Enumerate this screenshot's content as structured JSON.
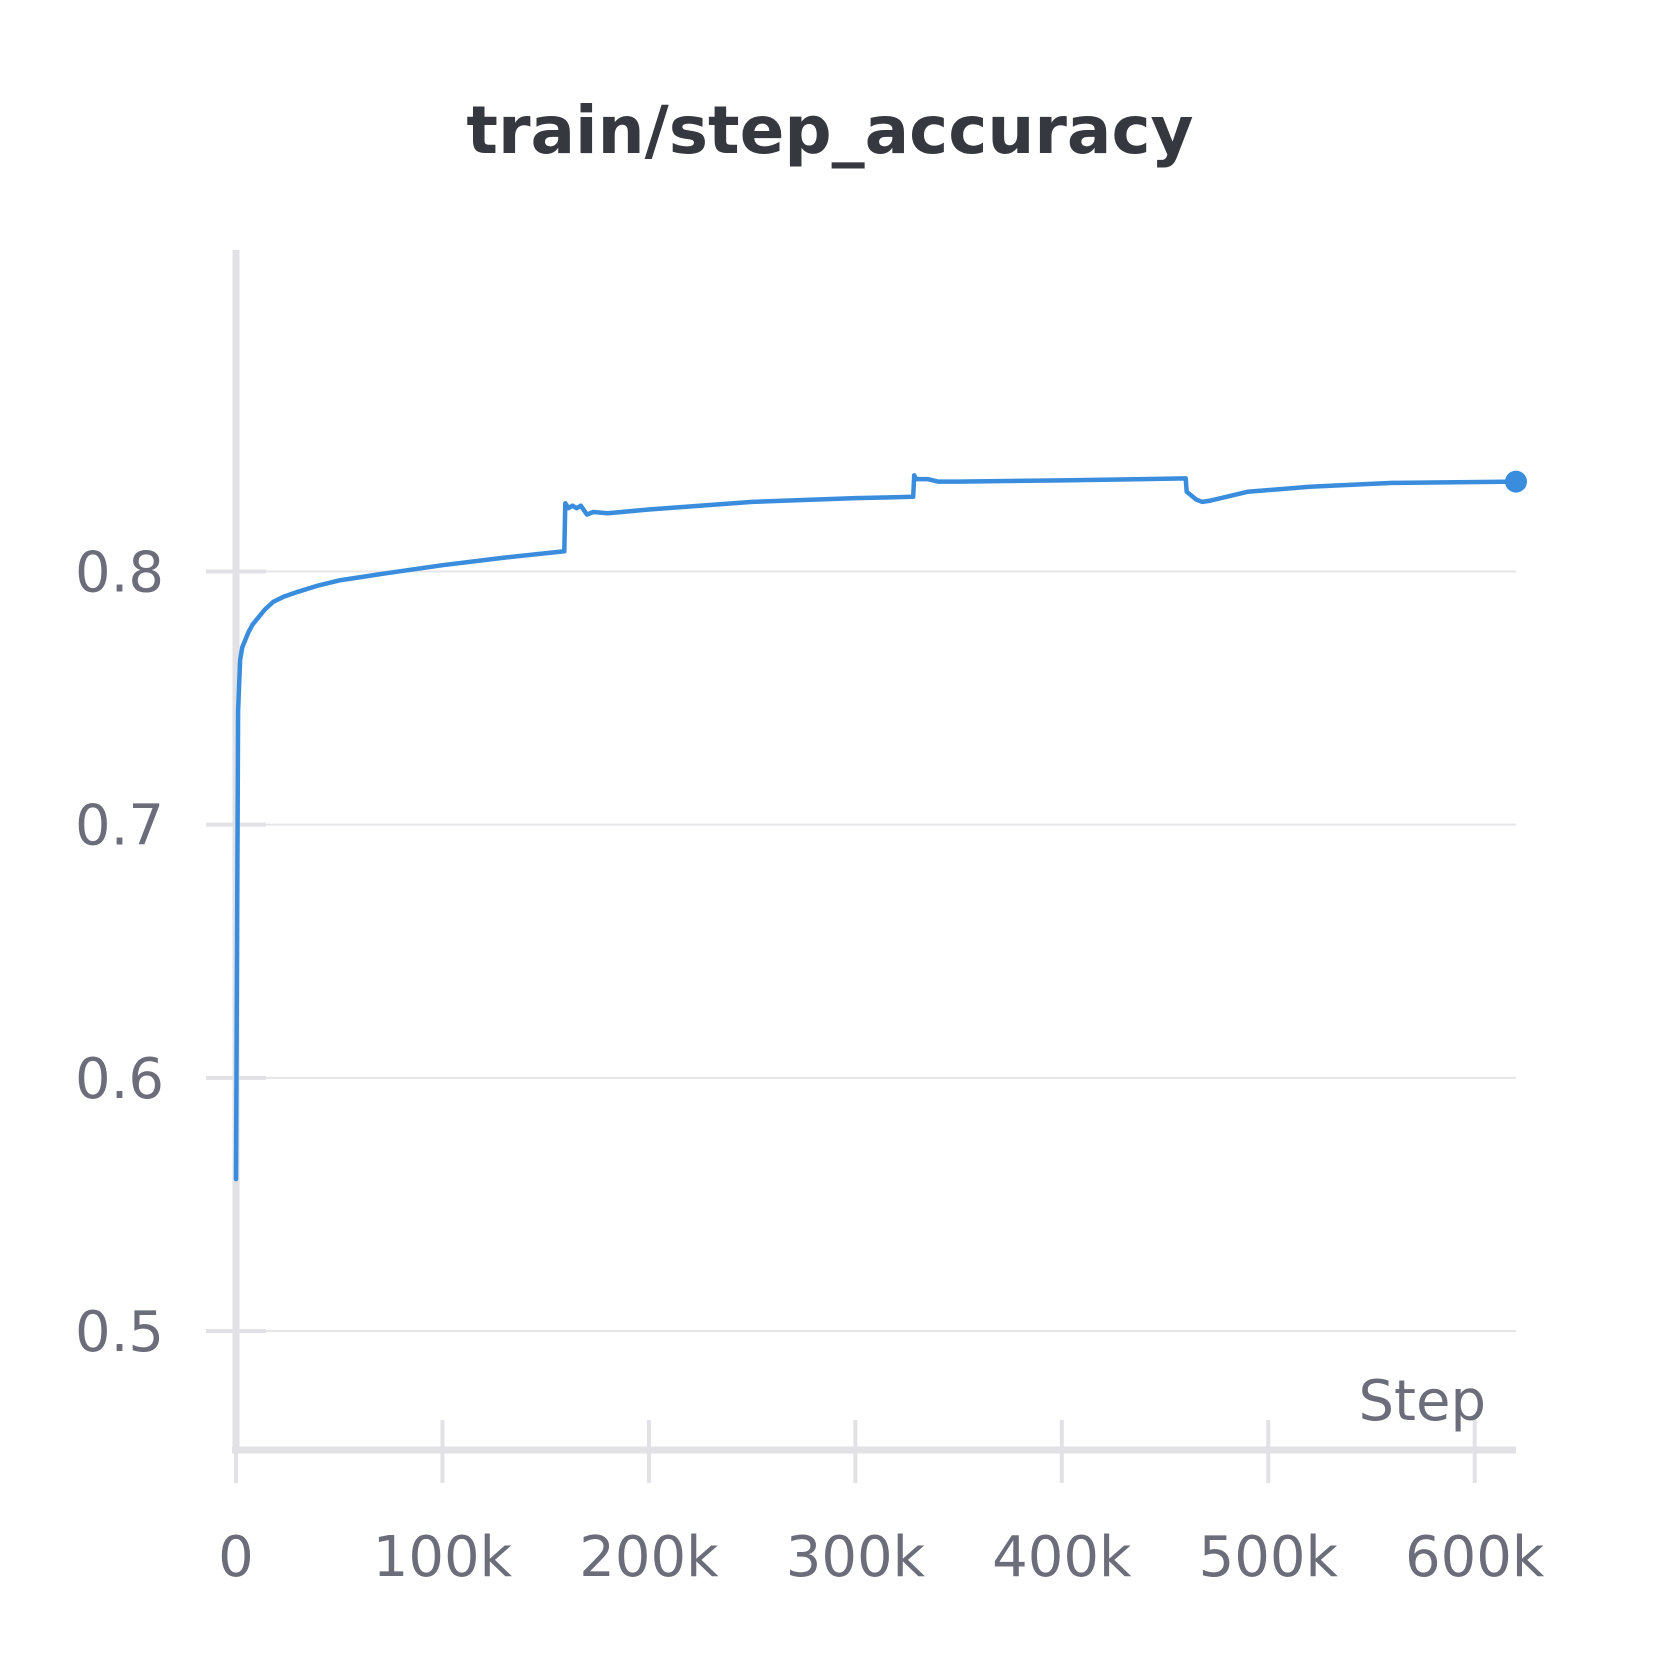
{
  "chart_data": {
    "type": "line",
    "title": "train/step_accuracy",
    "xlabel": "Step",
    "ylabel": "",
    "x_ticks": [
      0,
      100000,
      200000,
      300000,
      400000,
      500000,
      600000
    ],
    "x_tick_labels": [
      "0",
      "100k",
      "200k",
      "300k",
      "400k",
      "500k",
      "600k"
    ],
    "y_ticks": [
      0.5,
      0.6,
      0.7,
      0.8
    ],
    "y_tick_labels": [
      "0.5",
      "0.6",
      "0.7",
      "0.8"
    ],
    "xlim": [
      0,
      620000
    ],
    "ylim": [
      0.453,
      0.927
    ],
    "grid": true,
    "line_color": "#3a8ddd",
    "series": [
      {
        "x": [
          0,
          1000,
          2000,
          3000,
          4000,
          6000,
          8000,
          10000,
          14000,
          18000,
          23000,
          30000,
          40000,
          50000,
          70000,
          100000,
          130000,
          159000,
          159500,
          161000,
          163000,
          165000,
          167000,
          170000,
          173000,
          180000,
          200000,
          250000,
          300000,
          328000,
          328500,
          329500,
          335000,
          340000,
          350000,
          400000,
          460000,
          460500,
          462000,
          465000,
          468000,
          472000,
          490000,
          520000,
          560000,
          620000
        ],
        "y": [
          0.56,
          0.745,
          0.765,
          0.77,
          0.772,
          0.776,
          0.779,
          0.781,
          0.785,
          0.788,
          0.79,
          0.792,
          0.7945,
          0.7965,
          0.799,
          0.8025,
          0.8055,
          0.808,
          0.827,
          0.825,
          0.826,
          0.825,
          0.826,
          0.8225,
          0.8235,
          0.823,
          0.8245,
          0.8275,
          0.829,
          0.8295,
          0.838,
          0.8365,
          0.8365,
          0.8355,
          0.8355,
          0.836,
          0.8368,
          0.8315,
          0.8305,
          0.8285,
          0.8275,
          0.828,
          0.8315,
          0.8335,
          0.835,
          0.8355
        ]
      }
    ]
  }
}
